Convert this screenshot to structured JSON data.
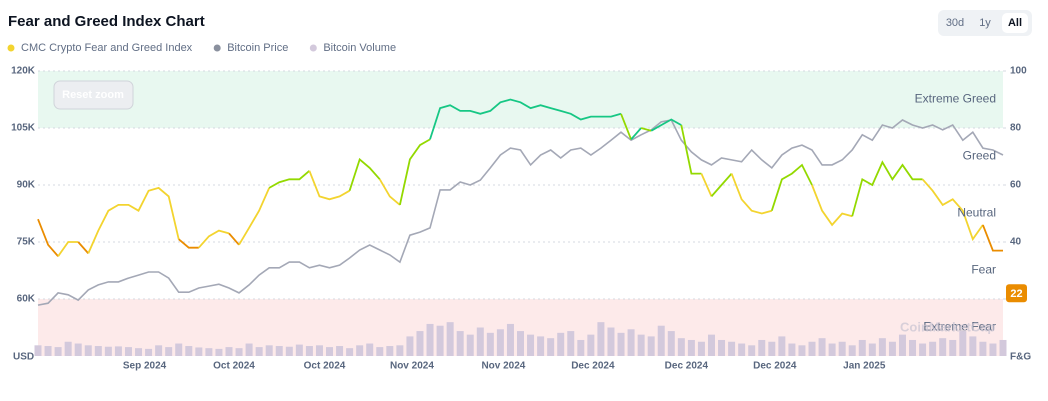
{
  "chart_data": {
    "type": "line",
    "title": "Fear and Greed Index Chart",
    "range_buttons": [
      "30d",
      "1y",
      "All"
    ],
    "active_button": 2,
    "reset_button": "Reset zoom",
    "watermark": "CoinMarketCap",
    "ylabel": "USD",
    "y2label": "F&G",
    "current_value": 22,
    "xlim": [
      0,
      96
    ],
    "xticks": [
      {
        "value": 10.6,
        "label": "Sep 2024"
      },
      {
        "value": 19.5,
        "label": "Oct 2024"
      },
      {
        "value": 28.5,
        "label": "Oct 2024"
      },
      {
        "value": 37.2,
        "label": "Nov 2024"
      },
      {
        "value": 46.3,
        "label": "Nov 2024"
      },
      {
        "value": 55.2,
        "label": "Dec 2024"
      },
      {
        "value": 64.5,
        "label": "Dec 2024"
      },
      {
        "value": 73.3,
        "label": "Dec 2024"
      },
      {
        "value": 82.2,
        "label": "Jan 2025"
      }
    ],
    "ylim": [
      45000,
      120000
    ],
    "yticks": [
      {
        "value": 60000,
        "label": "60K"
      },
      {
        "value": 75000,
        "label": "75K"
      },
      {
        "value": 90000,
        "label": "90K"
      },
      {
        "value": 105000,
        "label": "105K"
      },
      {
        "value": 120000,
        "label": "120K"
      }
    ],
    "y2lim": [
      0,
      100
    ],
    "y2ticks": [
      20,
      40,
      60,
      80,
      100
    ],
    "volume_lim": [
      0,
      800
    ],
    "grid": true,
    "bands": [
      {
        "label": "Extreme Fear",
        "range": [
          0,
          20
        ],
        "fill": "#fdeaea",
        "line_color": "#ea3943"
      },
      {
        "label": "Fear",
        "range": [
          20,
          40
        ],
        "fill": null,
        "line_color": "#ea8c00"
      },
      {
        "label": "Neutral",
        "range": [
          40,
          60
        ],
        "fill": null,
        "line_color": "#f3d42f"
      },
      {
        "label": "Greed",
        "range": [
          60,
          80
        ],
        "fill": null,
        "line_color": "#93d900"
      },
      {
        "label": "Extreme Greed",
        "range": [
          80,
          100
        ],
        "fill": "#e8f8f0",
        "line_color": "#16c784"
      }
    ],
    "series": [
      {
        "name": "CMC Crypto Fear and Greed Index",
        "color": "#f3d42f",
        "axis": "y2",
        "values": [
          48,
          39,
          35,
          40,
          40,
          36,
          44,
          51,
          53,
          53,
          51,
          58,
          59,
          56,
          41,
          38,
          38,
          42,
          44,
          43,
          39,
          45,
          51,
          59,
          61,
          62,
          62,
          65,
          56,
          55,
          56,
          58,
          69,
          66,
          62,
          56,
          53,
          69,
          74,
          76,
          87,
          88,
          86,
          86,
          85,
          86,
          89,
          90,
          89,
          87,
          88,
          87,
          86,
          85,
          83,
          84,
          84,
          84,
          85,
          76,
          80,
          79,
          81,
          83,
          81,
          64,
          64,
          56,
          60,
          64,
          55,
          51,
          50,
          51,
          62,
          64,
          67,
          60,
          51,
          46,
          50,
          49,
          62,
          60,
          68,
          62,
          67,
          62,
          62,
          58,
          53,
          55,
          51,
          41,
          46,
          37,
          37
        ]
      },
      {
        "name": "Bitcoin Price",
        "color": "#a4a8b6",
        "axis": "y",
        "values": [
          58400,
          58900,
          61600,
          61100,
          59700,
          62400,
          63700,
          64500,
          64500,
          65500,
          66300,
          67100,
          67100,
          65500,
          61800,
          61800,
          62900,
          63400,
          63900,
          62900,
          61600,
          63700,
          66300,
          68200,
          68200,
          69700,
          69700,
          68200,
          68900,
          68200,
          68900,
          70800,
          72900,
          74200,
          72900,
          71600,
          69700,
          76800,
          77600,
          78700,
          88700,
          88700,
          90800,
          90000,
          91300,
          94500,
          97900,
          99700,
          99200,
          95300,
          97900,
          99200,
          97100,
          99200,
          99700,
          97900,
          99700,
          101800,
          103900,
          101800,
          103200,
          104500,
          106600,
          107100,
          101800,
          98700,
          96600,
          95300,
          97100,
          96600,
          96100,
          99200,
          96600,
          94500,
          97900,
          99700,
          100500,
          99200,
          95300,
          95300,
          96600,
          99200,
          103200,
          101800,
          105800,
          105000,
          107100,
          105800,
          105000,
          105800,
          104500,
          105800,
          101800,
          103900,
          99700,
          99200,
          97900
        ]
      },
      {
        "name": "Bitcoin Volume",
        "color": "#d3c9dc",
        "axis": "volume",
        "values": [
          30,
          28,
          25,
          40,
          35,
          30,
          28,
          26,
          27,
          25,
          22,
          20,
          30,
          25,
          35,
          28,
          24,
          22,
          20,
          25,
          22,
          35,
          25,
          30,
          28,
          26,
          32,
          28,
          30,
          25,
          28,
          22,
          30,
          35,
          25,
          28,
          30,
          55,
          70,
          90,
          85,
          95,
          70,
          60,
          80,
          65,
          75,
          90,
          70,
          60,
          55,
          50,
          65,
          70,
          45,
          60,
          95,
          80,
          65,
          75,
          60,
          55,
          85,
          70,
          50,
          45,
          40,
          60,
          45,
          40,
          35,
          30,
          45,
          40,
          55,
          35,
          30,
          40,
          50,
          35,
          40,
          30,
          45,
          35,
          50,
          40,
          60,
          45,
          35,
          40,
          50,
          45,
          70,
          55,
          40,
          35,
          45
        ]
      }
    ]
  }
}
